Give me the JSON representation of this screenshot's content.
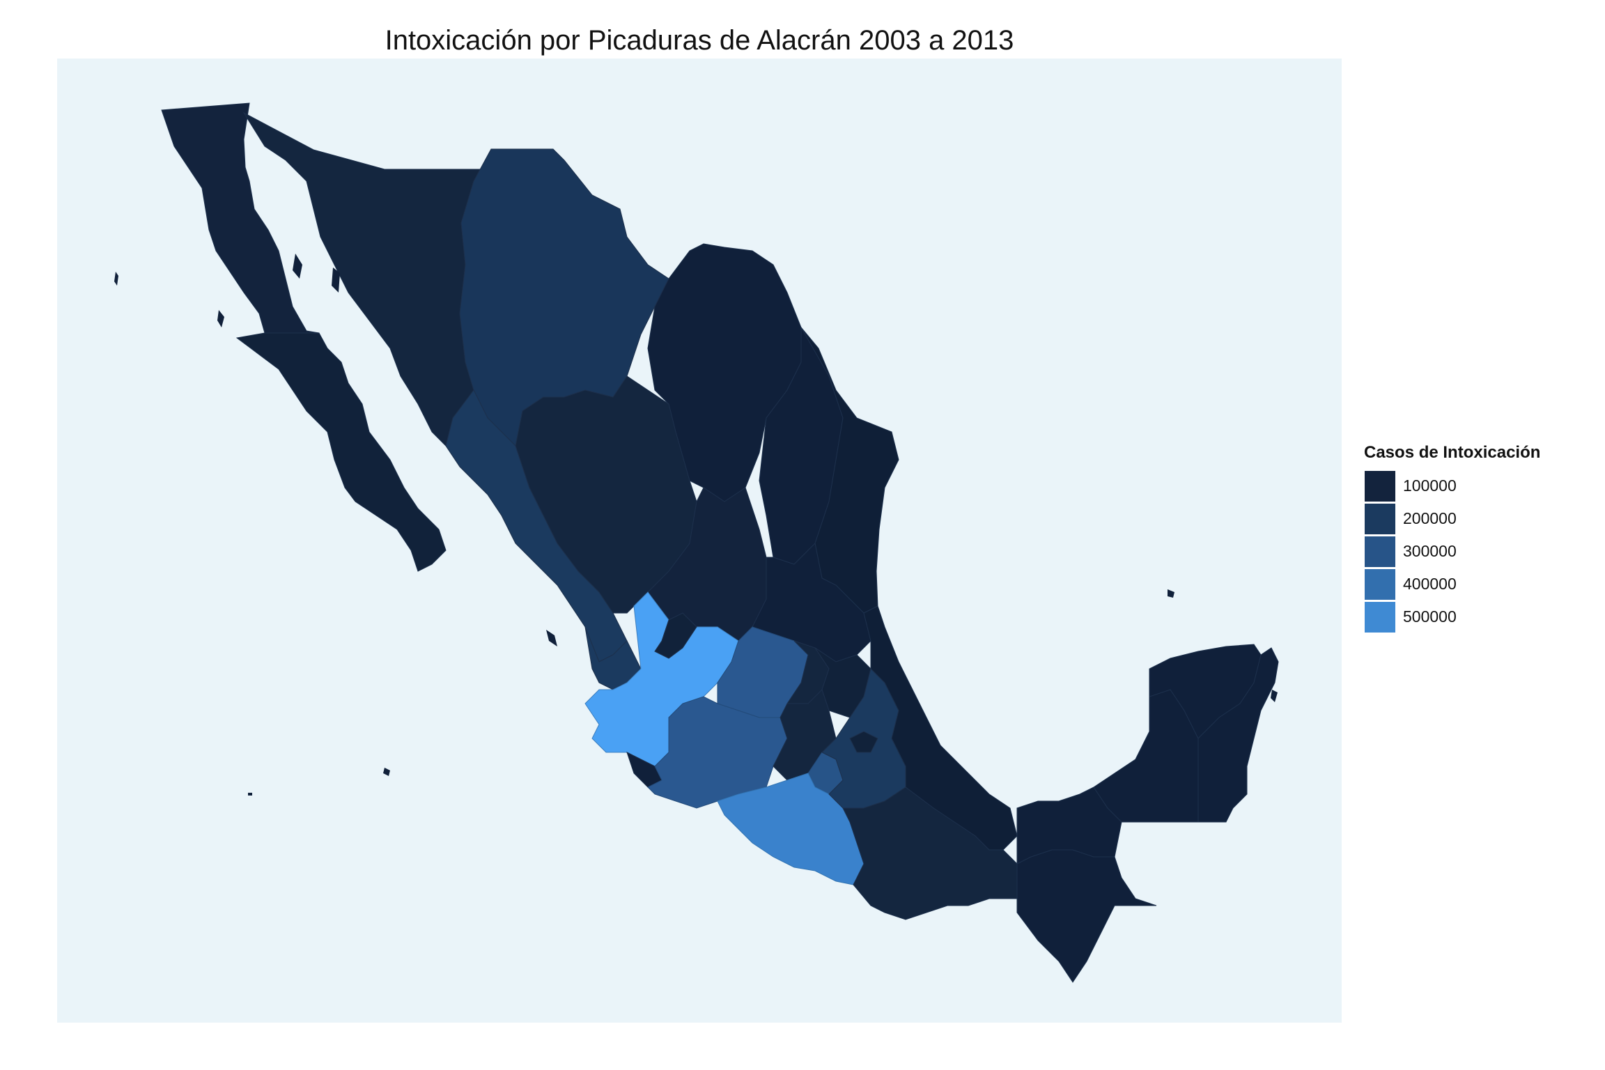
{
  "title": "Intoxicación por Picaduras de Alacrán  2003 a 2013",
  "legend": {
    "title": "Casos de Intoxicación",
    "items": [
      {
        "label": "100000",
        "color": "#13233d"
      },
      {
        "label": "200000",
        "color": "#1b3a5f"
      },
      {
        "label": "300000",
        "color": "#275488"
      },
      {
        "label": "400000",
        "color": "#326fae"
      },
      {
        "label": "500000",
        "color": "#3f8ad3"
      }
    ]
  },
  "colors": {
    "background": "#eaf4f9",
    "darkest": "#10203a",
    "state_low": "#13253f",
    "state_mid_low": "#19365a",
    "state_mid": "#2a5890",
    "state_high": "#3a82cc",
    "state_max": "#4aa1f4"
  }
}
